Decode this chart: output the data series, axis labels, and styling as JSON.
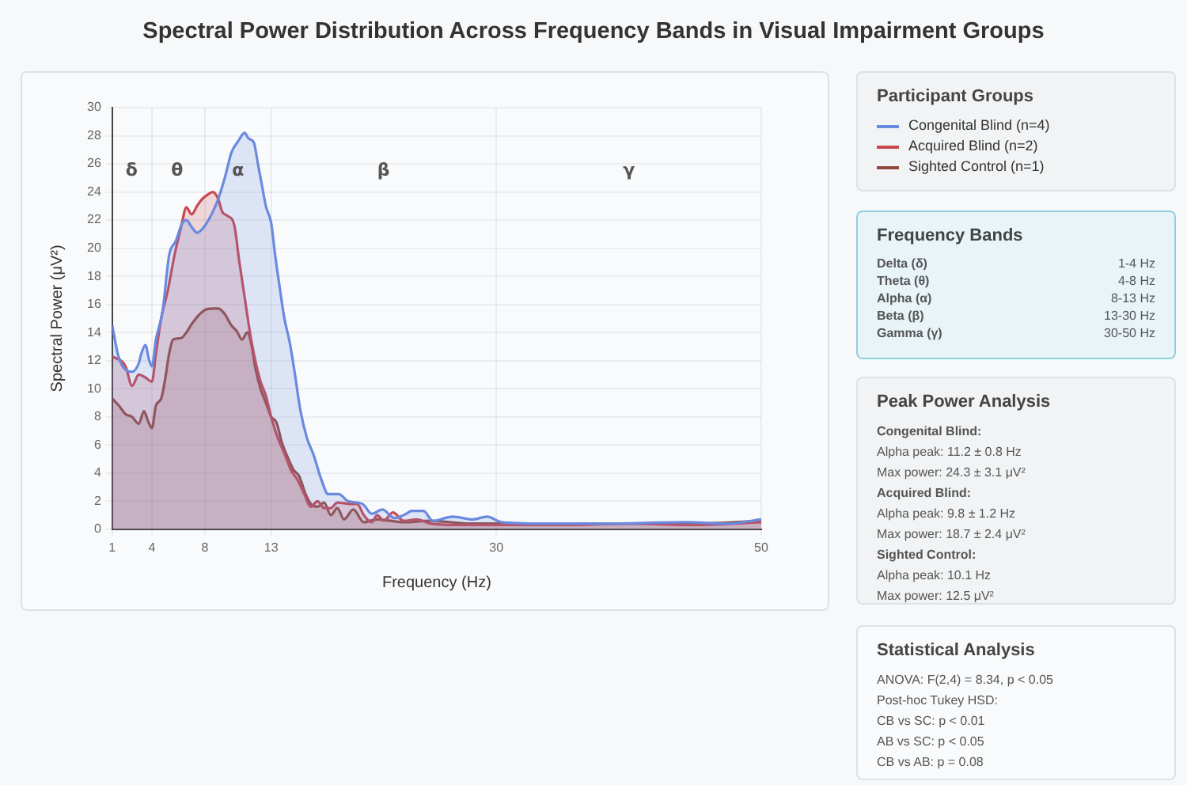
{
  "chart_data": [
    {
      "type": "area",
      "title": "Spectral Power Distribution Across Frequency Bands in Visual Impairment Groups",
      "xlabel": "Frequency (Hz)",
      "ylabel": "Spectral Power (μV²)",
      "legend_title": "Participant Groups",
      "legend": "right",
      "grid": true,
      "marker": "none",
      "line_style": "solid",
      "xlim": [
        1,
        50
      ],
      "xticks": [
        1,
        4,
        8,
        13,
        30,
        50
      ],
      "ylim": [
        0,
        30
      ],
      "yticks": [
        0,
        2,
        4,
        6,
        8,
        10,
        12,
        14,
        16,
        18,
        20,
        22,
        24,
        26,
        28,
        30
      ],
      "annotations": [
        "δ",
        "θ",
        "α",
        "β",
        "γ"
      ],
      "series": [
        {
          "name": "Congenital Blind (n=4)",
          "color": "#6a8ae0",
          "x": [
            1,
            1.5,
            2.5,
            3,
            3.2,
            3.5,
            3.8,
            4,
            4.3,
            4.8,
            5.3,
            5.8,
            6.3,
            6.6,
            7,
            7.4,
            8,
            8.6,
            9,
            9.5,
            10,
            10.5,
            11,
            11.3,
            11.7,
            12,
            12.3,
            12.6,
            13,
            13.3,
            13.6,
            14,
            14.4,
            14.8,
            15.2,
            15.7,
            16.2,
            16.8,
            17.3,
            18.1,
            18.8,
            19.9,
            20.6,
            21.4,
            22.3,
            23.2,
            23.6,
            24.5,
            25.2,
            26.7,
            28.2,
            29.3,
            30.4,
            33.5,
            38,
            44.3,
            47.5,
            50
          ],
          "values": [
            14.5,
            12.2,
            11.2,
            11.8,
            12.5,
            13.1,
            12,
            11.6,
            13.5,
            15.5,
            19.5,
            20.5,
            21.8,
            22,
            21.5,
            21.1,
            21.6,
            22.6,
            23.5,
            25,
            26.8,
            27.6,
            28.2,
            27.8,
            27.5,
            26,
            24.5,
            23,
            21.8,
            19.5,
            17.5,
            15,
            13.3,
            11,
            8.5,
            6.5,
            5.3,
            3.5,
            2.5,
            2.5,
            2,
            1.8,
            1.1,
            1.4,
            0.8,
            1.1,
            1.3,
            1.3,
            0.6,
            0.9,
            0.7,
            0.9,
            0.5,
            0.4,
            0.4,
            0.5,
            0.4,
            0.7
          ]
        },
        {
          "name": "Acquired Blind (n=2)",
          "color": "#c9474f",
          "x": [
            1,
            2,
            2.5,
            3,
            3.5,
            4,
            4.3,
            4.7,
            5.2,
            5.7,
            6.2,
            6.6,
            7,
            7.4,
            7.8,
            8.2,
            8.6,
            9,
            9.3,
            9.7,
            10.2,
            10.6,
            11,
            11.4,
            11.8,
            12.2,
            12.6,
            13,
            13.5,
            14,
            14.5,
            15,
            15.5,
            16,
            16.5,
            17,
            17.5,
            18,
            19,
            19.5,
            20,
            20.6,
            21,
            21.5,
            22.2,
            23,
            24,
            25,
            27,
            30,
            35,
            40,
            45,
            50
          ],
          "values": [
            12.3,
            11.6,
            10.2,
            11,
            10.8,
            10.5,
            12.5,
            15,
            17,
            19.5,
            21.5,
            22.9,
            22.4,
            23,
            23.5,
            23.8,
            24,
            23.5,
            22.6,
            22.3,
            21.7,
            19,
            16.5,
            14,
            12,
            10.5,
            9.5,
            8,
            6.5,
            5.4,
            4.2,
            3.5,
            2.5,
            1.6,
            2,
            1.5,
            1.5,
            1.9,
            1.8,
            1.8,
            1,
            0.5,
            1,
            0.6,
            1.2,
            0.6,
            0.7,
            0.4,
            0.3,
            0.3,
            0.3,
            0.4,
            0.3,
            0.5
          ]
        },
        {
          "name": "Sighted Control (n=1)",
          "color": "#8f4a3c",
          "x": [
            1,
            1.5,
            2,
            2.5,
            3,
            3.4,
            3.7,
            4,
            4.3,
            4.7,
            5,
            5.3,
            5.6,
            6.2,
            6.6,
            7,
            7.5,
            8,
            8.6,
            9,
            9.5,
            10,
            10.4,
            10.8,
            11.2,
            11.5,
            11.8,
            12.2,
            12.6,
            13,
            13.4,
            13.8,
            14.3,
            14.7,
            15.1,
            15.6,
            16,
            16.5,
            17,
            17.5,
            18,
            18.5,
            19.2,
            20,
            21,
            22,
            23,
            25,
            28,
            30,
            35,
            40,
            45,
            50
          ],
          "values": [
            9.3,
            8.8,
            8.2,
            8,
            7.5,
            8.4,
            7.7,
            7.2,
            8.8,
            9.3,
            10.7,
            12.5,
            13.5,
            13.6,
            14,
            14.6,
            15.2,
            15.6,
            15.7,
            15.7,
            15.3,
            14.5,
            14.1,
            13.5,
            14,
            13.2,
            11.5,
            10,
            9,
            8,
            7.6,
            6.2,
            5,
            4.2,
            3.8,
            2.5,
            1.8,
            1.6,
            1.9,
            1,
            1.5,
            0.7,
            1.4,
            0.5,
            0.7,
            0.6,
            0.5,
            0.6,
            0.4,
            0.4,
            0.4,
            0.4,
            0.4,
            0.6
          ]
        }
      ]
    },
    {
      "type": "other",
      "title": "Frequency Bands",
      "categories": [
        "Delta (δ)",
        "Theta (θ)",
        "Alpha (α)",
        "Beta (β)",
        "Gamma (γ)"
      ],
      "annotations": [
        "1-4 Hz",
        "4-8 Hz",
        "8-13 Hz",
        "13-30 Hz",
        "30-50 Hz"
      ]
    },
    {
      "type": "other",
      "title": "Peak Power Analysis",
      "annotations": [
        "Congenital Blind:",
        "Alpha peak: 11.2 ± 0.8 Hz",
        "Max power: 24.3 ± 3.1 μV²",
        "Acquired Blind:",
        "Alpha peak: 9.8 ± 1.2 Hz",
        "Max power: 18.7 ± 2.4 μV²",
        "Sighted Control:",
        "Alpha peak: 10.1 Hz",
        "Max power: 12.5 μV²"
      ]
    },
    {
      "type": "other",
      "title": "Statistical Analysis",
      "annotations": [
        "ANOVA: F(2,4) = 8.34, p < 0.05",
        "Post-hoc Tukey HSD:",
        "CB vs SC: p < 0.01",
        "AB vs SC: p < 0.05",
        "CB vs AB: p = 0.08"
      ]
    }
  ]
}
